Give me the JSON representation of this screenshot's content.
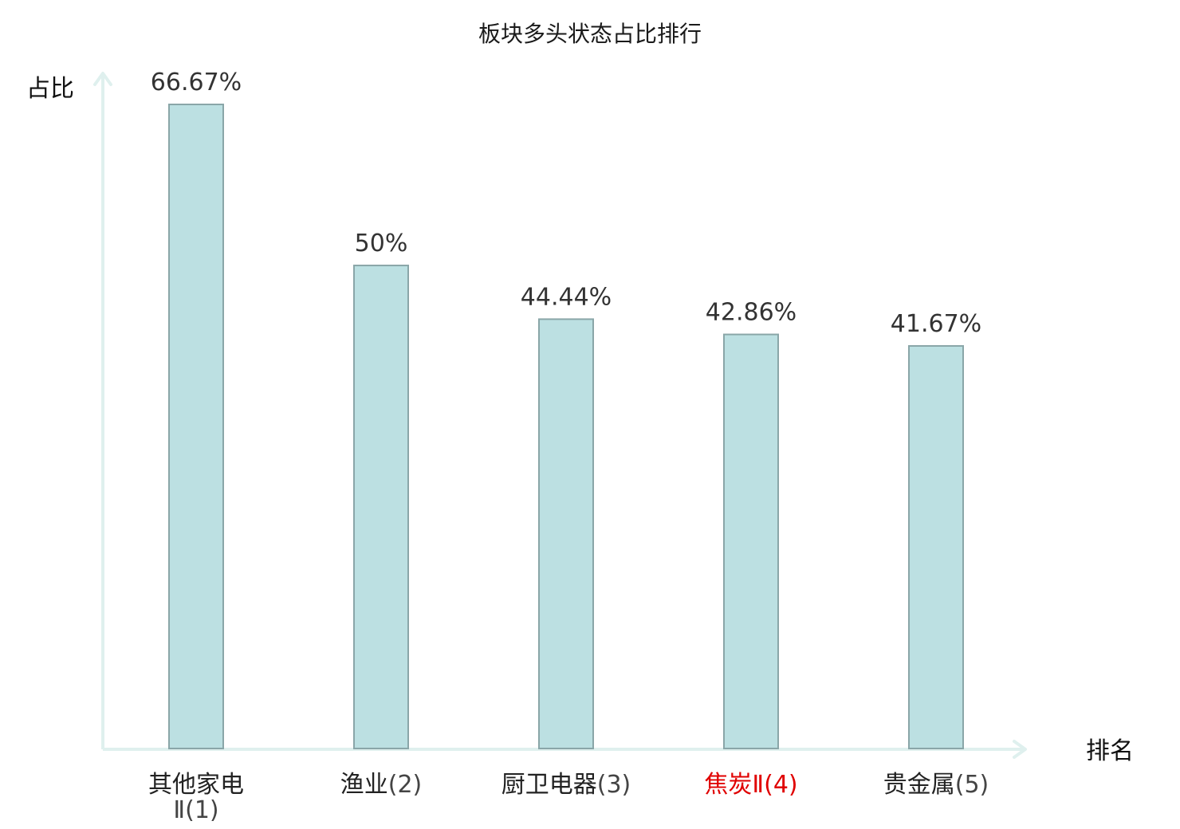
{
  "chart_data": {
    "type": "bar",
    "title": "板块多头状态占比排行",
    "ylabel": "占比",
    "xlabel": "排名",
    "ylim": [
      0,
      66.67
    ],
    "grid": false,
    "categories": [
      {
        "name": "其他家电Ⅱ",
        "rank": "(1)",
        "value": 66.67,
        "label": "66.67%",
        "highlight": false
      },
      {
        "name": "渔业",
        "rank": "(2)",
        "value": 50,
        "label": "50%",
        "highlight": false
      },
      {
        "name": "厨卫电器",
        "rank": "(3)",
        "value": 44.44,
        "label": "44.44%",
        "highlight": false
      },
      {
        "name": "焦炭Ⅱ",
        "rank": "(4)",
        "value": 42.86,
        "label": "42.86%",
        "highlight": true
      },
      {
        "name": "贵金属",
        "rank": "(5)",
        "value": 41.67,
        "label": "41.67%",
        "highlight": false
      }
    ],
    "colors": {
      "bar_fill": "#bce0e2",
      "bar_stroke": "#8aa6a8",
      "axis": "#dff0ee",
      "highlight": "#e00000"
    }
  }
}
